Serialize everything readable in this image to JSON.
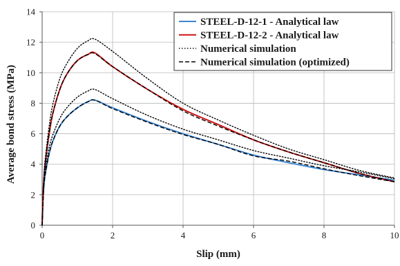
{
  "chart_data": {
    "type": "line",
    "title": "",
    "xlabel": "Slip (mm)",
    "ylabel": "Average bond stress (MPa)",
    "xlim": [
      0,
      10
    ],
    "ylim": [
      0,
      14
    ],
    "x_ticks": [
      0,
      2,
      4,
      6,
      8,
      10
    ],
    "y_ticks": [
      0,
      2,
      4,
      6,
      8,
      10,
      12,
      14
    ],
    "x_tick_labels": [
      "0",
      "2",
      "4",
      "6",
      "8",
      "10"
    ],
    "y_tick_labels": [
      "0",
      "2",
      "4",
      "6",
      "8",
      "10",
      "12",
      "14"
    ],
    "grid": true,
    "legend_position": "top-right",
    "colors": {
      "steel_1": "#3a86d4",
      "steel_2": "#cc1111",
      "black": "#000000",
      "grid": "#b8b8b8"
    },
    "series": [
      {
        "name": "STEEL-D-12-1 - Analytical law",
        "style": "solid",
        "color": "#3a86d4",
        "x": [
          0,
          0.02,
          0.05,
          0.1,
          0.2,
          0.3,
          0.5,
          0.7,
          1.0,
          1.3,
          1.5,
          2.0,
          3.0,
          4.0,
          5.0,
          6.0,
          7.0,
          8.0,
          9.0,
          10.0
        ],
        "y": [
          0,
          1.6,
          2.6,
          3.5,
          4.7,
          5.5,
          6.5,
          7.1,
          7.7,
          8.1,
          8.2,
          7.7,
          6.8,
          6.0,
          5.3,
          4.6,
          4.1,
          3.65,
          3.3,
          2.95
        ]
      },
      {
        "name": "STEEL-D-12-2 - Analytical law",
        "style": "solid",
        "color": "#cc1111",
        "x": [
          0,
          0.02,
          0.05,
          0.1,
          0.2,
          0.3,
          0.5,
          0.7,
          1.0,
          1.3,
          1.5,
          2.0,
          3.0,
          4.0,
          5.0,
          6.0,
          7.0,
          8.0,
          9.0,
          10.0
        ],
        "y": [
          0,
          1.8,
          3.0,
          4.3,
          6.0,
          7.3,
          8.9,
          9.9,
          10.8,
          11.2,
          11.3,
          10.4,
          8.9,
          7.6,
          6.6,
          5.6,
          4.8,
          4.1,
          3.4,
          2.85
        ]
      },
      {
        "name": "Numerical simulation",
        "style": "dotted",
        "color": "#000000",
        "x": [
          0,
          0.05,
          0.1,
          0.2,
          0.3,
          0.5,
          0.7,
          1.0,
          1.3,
          1.5,
          2.0,
          3.0,
          4.0,
          5.0,
          6.0,
          7.0,
          8.0,
          9.0,
          10.0
        ],
        "y": [
          0,
          3.2,
          4.6,
          6.5,
          7.9,
          9.6,
          10.6,
          11.6,
          12.1,
          12.2,
          11.4,
          9.6,
          8.0,
          6.9,
          5.9,
          5.0,
          4.3,
          3.6,
          3.1
        ]
      },
      {
        "name": "",
        "style": "dotted",
        "color": "#000000",
        "x": [
          0,
          0.05,
          0.1,
          0.2,
          0.3,
          0.5,
          0.7,
          1.0,
          1.3,
          1.5,
          2.0,
          3.0,
          4.0,
          5.0,
          6.0,
          7.0,
          8.0,
          9.0,
          10.0
        ],
        "y": [
          0,
          2.7,
          3.8,
          5.1,
          5.9,
          7.0,
          7.7,
          8.4,
          8.8,
          8.9,
          8.3,
          7.2,
          6.3,
          5.6,
          4.9,
          4.4,
          3.9,
          3.5,
          3.05
        ]
      },
      {
        "name": "Numerical simulation (optimized)",
        "style": "dashed",
        "color": "#000000",
        "x": [
          0,
          0.05,
          0.1,
          0.2,
          0.3,
          0.5,
          0.7,
          1.0,
          1.3,
          1.5,
          2.0,
          3.0,
          4.0,
          5.0,
          6.0,
          7.0,
          8.0,
          9.0,
          10.0
        ],
        "y": [
          0,
          3.0,
          4.3,
          6.0,
          7.3,
          8.9,
          9.9,
          10.8,
          11.2,
          11.25,
          10.4,
          8.9,
          7.5,
          6.5,
          5.6,
          4.8,
          4.1,
          3.4,
          2.85
        ]
      },
      {
        "name": "",
        "style": "dashed",
        "color": "#000000",
        "x": [
          0,
          0.05,
          0.1,
          0.2,
          0.3,
          0.5,
          0.7,
          1.0,
          1.3,
          1.5,
          2.0,
          3.0,
          4.0,
          5.0,
          6.0,
          7.0,
          8.0,
          9.0,
          10.0
        ],
        "y": [
          0,
          2.6,
          3.5,
          4.7,
          5.5,
          6.5,
          7.1,
          7.7,
          8.1,
          8.2,
          7.65,
          6.75,
          5.95,
          5.3,
          4.55,
          4.2,
          3.7,
          3.25,
          2.85
        ]
      }
    ],
    "legend": [
      {
        "label": "STEEL-D-12-1 - Analytical law",
        "style": "solid",
        "color": "#3a86d4"
      },
      {
        "label": "STEEL-D-12-2 - Analytical law",
        "style": "solid",
        "color": "#cc1111"
      },
      {
        "label": "Numerical simulation",
        "style": "dotted",
        "color": "#000000"
      },
      {
        "label": "Numerical simulation (optimized)",
        "style": "dashed",
        "color": "#000000"
      }
    ]
  }
}
